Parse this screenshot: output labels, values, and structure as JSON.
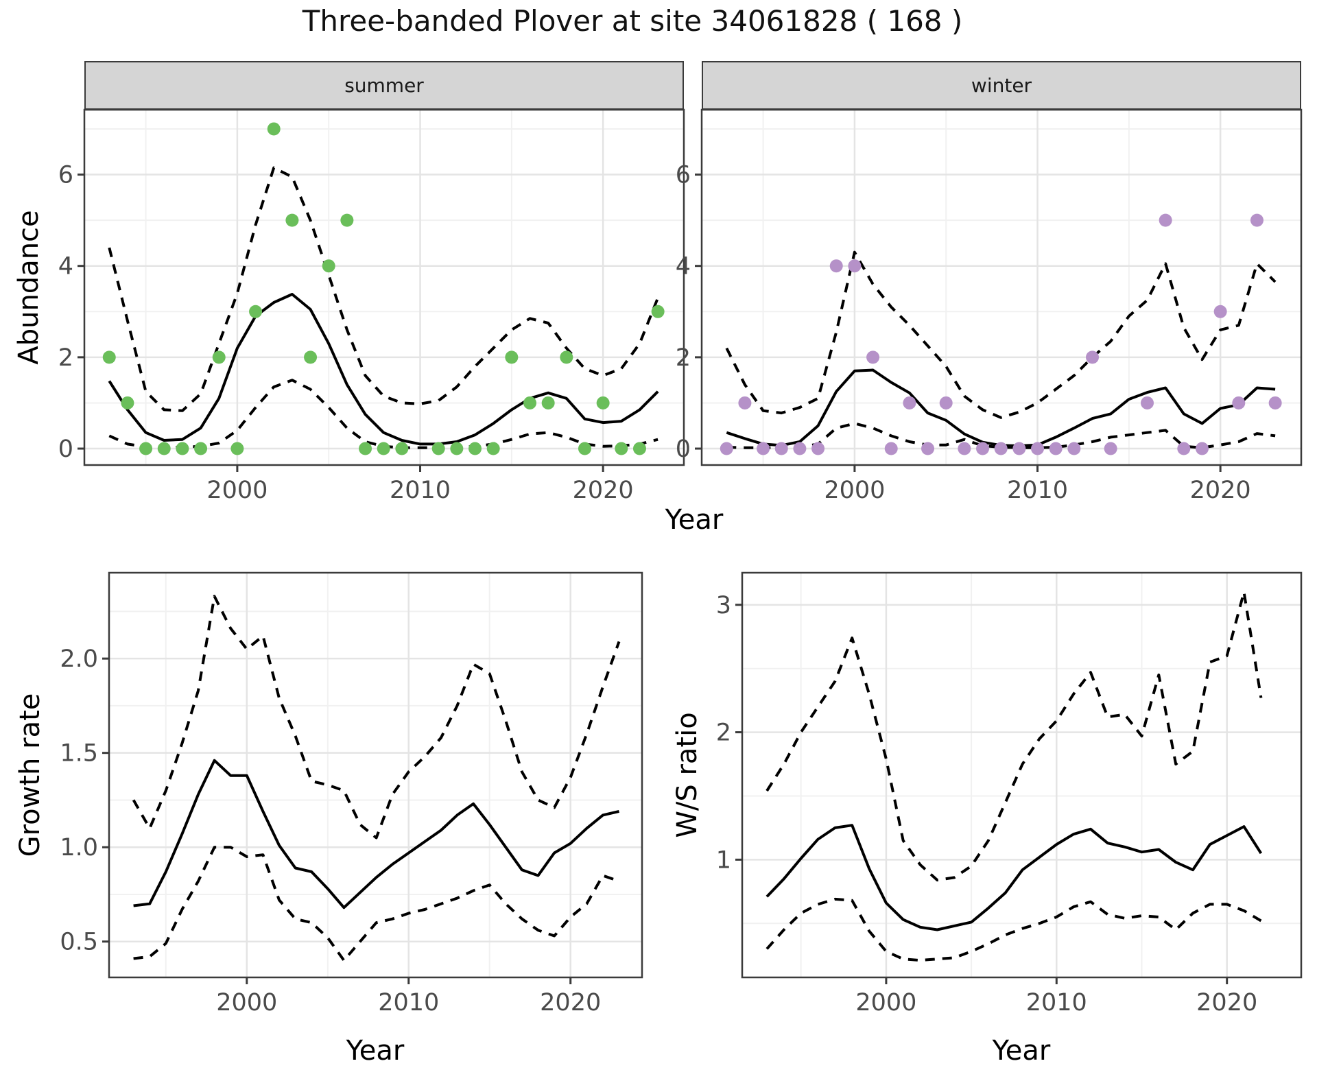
{
  "title": "Three-banded Plover at site 34061828 ( 168 )",
  "facets": [
    {
      "label": "summer"
    },
    {
      "label": "winter"
    }
  ],
  "axis_titles": {
    "abundance": "Abundance",
    "year": "Year",
    "growth": "Growth rate",
    "ws": "W/S ratio"
  },
  "colors": {
    "summer_point": "#6abe5a",
    "winter_point": "#b591c8",
    "line": "#000000",
    "grid_major": "#e4e4e4",
    "grid_minor": "#f1f1f1",
    "strip_bg": "#d5d5d5",
    "panel_border": "#3b3b3b",
    "tick_label": "#4a4a4a"
  },
  "chart_data": [
    {
      "panel": "summer",
      "type": "scatter+line",
      "facet_label": "summer",
      "xlim": [
        1991.64,
        2024.42
      ],
      "ylim": [
        -0.36,
        7.42
      ],
      "x_ticks": [
        2000,
        2010,
        2020
      ],
      "x_minor": [
        1995,
        2005,
        2015
      ],
      "y_ticks": [
        0,
        2,
        4,
        6
      ],
      "y_minor": [
        1,
        3,
        5,
        7
      ],
      "point_color": "summer_point",
      "points": [
        [
          1993,
          2
        ],
        [
          1994,
          1
        ],
        [
          1995,
          0
        ],
        [
          1996,
          0
        ],
        [
          1997,
          0
        ],
        [
          1998,
          0
        ],
        [
          1999,
          2
        ],
        [
          2000,
          0
        ],
        [
          2001,
          3
        ],
        [
          2002,
          7
        ],
        [
          2003,
          5
        ],
        [
          2004,
          2
        ],
        [
          2005,
          4
        ],
        [
          2006,
          5
        ],
        [
          2007,
          0
        ],
        [
          2008,
          0
        ],
        [
          2009,
          0
        ],
        [
          2011,
          0
        ],
        [
          2012,
          0
        ],
        [
          2013,
          0
        ],
        [
          2014,
          0
        ],
        [
          2015,
          2
        ],
        [
          2016,
          1
        ],
        [
          2017,
          1
        ],
        [
          2018,
          2
        ],
        [
          2019,
          0
        ],
        [
          2020,
          1
        ],
        [
          2021,
          0
        ],
        [
          2022,
          0
        ],
        [
          2023,
          3
        ]
      ],
      "years": [
        1993,
        1994,
        1995,
        1996,
        1997,
        1998,
        1999,
        2000,
        2001,
        2002,
        2003,
        2004,
        2005,
        2006,
        2007,
        2008,
        2009,
        2010,
        2011,
        2012,
        2013,
        2014,
        2015,
        2016,
        2017,
        2018,
        2019,
        2020,
        2021,
        2022,
        2023
      ],
      "fit": [
        1.48,
        0.85,
        0.35,
        0.18,
        0.2,
        0.45,
        1.1,
        2.2,
        2.9,
        3.2,
        3.38,
        3.05,
        2.3,
        1.4,
        0.75,
        0.35,
        0.18,
        0.1,
        0.1,
        0.15,
        0.3,
        0.55,
        0.85,
        1.1,
        1.22,
        1.1,
        0.65,
        0.57,
        0.6,
        0.85,
        1.25
      ],
      "upper": [
        4.4,
        2.8,
        1.25,
        0.85,
        0.83,
        1.2,
        2.3,
        3.4,
        4.9,
        6.15,
        5.95,
        5.0,
        3.8,
        2.6,
        1.6,
        1.15,
        1.0,
        0.98,
        1.05,
        1.35,
        1.8,
        2.2,
        2.6,
        2.85,
        2.75,
        2.2,
        1.75,
        1.6,
        1.75,
        2.3,
        3.3
      ],
      "lower": [
        0.28,
        0.1,
        0.04,
        0.03,
        0.03,
        0.05,
        0.12,
        0.4,
        0.9,
        1.35,
        1.5,
        1.3,
        0.9,
        0.45,
        0.15,
        0.05,
        0.02,
        0.02,
        0.02,
        0.03,
        0.05,
        0.1,
        0.2,
        0.32,
        0.35,
        0.25,
        0.1,
        0.05,
        0.06,
        0.1,
        0.2
      ]
    },
    {
      "panel": "winter",
      "type": "scatter+line",
      "facet_label": "winter",
      "xlim": [
        1991.64,
        2024.42
      ],
      "ylim": [
        -0.36,
        7.42
      ],
      "x_ticks": [
        2000,
        2010,
        2020
      ],
      "x_minor": [
        1995,
        2005,
        2015
      ],
      "y_ticks": [
        0,
        2,
        4,
        6
      ],
      "y_minor": [
        1,
        3,
        5,
        7
      ],
      "point_color": "winter_point",
      "points": [
        [
          1993,
          0
        ],
        [
          1994,
          1
        ],
        [
          1995,
          0
        ],
        [
          1996,
          0
        ],
        [
          1997,
          0
        ],
        [
          1998,
          0
        ],
        [
          1999,
          4
        ],
        [
          2000,
          4
        ],
        [
          2001,
          2
        ],
        [
          2002,
          0
        ],
        [
          2003,
          1
        ],
        [
          2004,
          0
        ],
        [
          2005,
          1
        ],
        [
          2006,
          0
        ],
        [
          2007,
          0
        ],
        [
          2008,
          0
        ],
        [
          2009,
          0
        ],
        [
          2010,
          0
        ],
        [
          2011,
          0
        ],
        [
          2012,
          0
        ],
        [
          2013,
          2
        ],
        [
          2014,
          0
        ],
        [
          2016,
          1
        ],
        [
          2017,
          5
        ],
        [
          2018,
          0
        ],
        [
          2019,
          0
        ],
        [
          2020,
          3
        ],
        [
          2021,
          1
        ],
        [
          2022,
          5
        ],
        [
          2023,
          1
        ]
      ],
      "years": [
        1993,
        1994,
        1995,
        1996,
        1997,
        1998,
        1999,
        2000,
        2001,
        2002,
        2003,
        2004,
        2005,
        2006,
        2007,
        2008,
        2009,
        2010,
        2011,
        2012,
        2013,
        2014,
        2015,
        2016,
        2017,
        2018,
        2019,
        2020,
        2021,
        2022,
        2023
      ],
      "fit": [
        0.35,
        0.22,
        0.1,
        0.07,
        0.15,
        0.5,
        1.25,
        1.7,
        1.72,
        1.45,
        1.22,
        0.78,
        0.62,
        0.32,
        0.14,
        0.07,
        0.06,
        0.08,
        0.25,
        0.45,
        0.66,
        0.76,
        1.08,
        1.23,
        1.33,
        0.76,
        0.55,
        0.88,
        0.96,
        1.33,
        1.3
      ],
      "upper": [
        2.2,
        1.4,
        0.83,
        0.78,
        0.9,
        1.1,
        2.55,
        4.3,
        3.6,
        3.1,
        2.7,
        2.25,
        1.8,
        1.15,
        0.85,
        0.68,
        0.8,
        1.0,
        1.3,
        1.6,
        2.0,
        2.35,
        2.9,
        3.25,
        4.05,
        2.65,
        1.95,
        2.6,
        2.7,
        4.05,
        3.65
      ],
      "lower": [
        0.03,
        0.02,
        0.02,
        0.02,
        0.03,
        0.1,
        0.45,
        0.55,
        0.45,
        0.28,
        0.15,
        0.08,
        0.08,
        0.2,
        0.06,
        0.03,
        0.02,
        0.02,
        0.03,
        0.08,
        0.15,
        0.25,
        0.3,
        0.35,
        0.4,
        0.05,
        0.02,
        0.08,
        0.15,
        0.33,
        0.28
      ]
    },
    {
      "panel": "growth",
      "type": "line",
      "ylabel": "Growth rate",
      "xlim": [
        1991.49,
        2024.42
      ],
      "ylim": [
        0.31,
        2.455
      ],
      "x_ticks": [
        2000,
        2010,
        2020
      ],
      "x_minor": [
        1995,
        2005,
        2015
      ],
      "y_ticks": [
        0.5,
        1.0,
        1.5,
        2.0
      ],
      "y_tick_labels": [
        "0.5",
        "1.0",
        "1.5",
        "2.0"
      ],
      "y_minor": [
        0.75,
        1.25,
        1.75,
        2.25
      ],
      "years": [
        1993,
        1994,
        1995,
        1996,
        1997,
        1998,
        1999,
        2000,
        2001,
        2002,
        2003,
        2004,
        2005,
        2006,
        2007,
        2008,
        2009,
        2010,
        2011,
        2012,
        2013,
        2014,
        2015,
        2016,
        2017,
        2018,
        2019,
        2020,
        2021,
        2022,
        2023
      ],
      "fit": [
        0.69,
        0.7,
        0.87,
        1.07,
        1.28,
        1.46,
        1.38,
        1.38,
        1.19,
        1.01,
        0.89,
        0.87,
        0.78,
        0.68,
        0.76,
        0.84,
        0.91,
        0.97,
        1.03,
        1.09,
        1.17,
        1.23,
        1.12,
        1.0,
        0.88,
        0.85,
        0.97,
        1.02,
        1.1,
        1.17,
        1.19
      ],
      "upper": [
        1.25,
        1.1,
        1.3,
        1.55,
        1.83,
        2.33,
        2.16,
        2.05,
        2.12,
        1.79,
        1.59,
        1.35,
        1.33,
        1.3,
        1.12,
        1.05,
        1.28,
        1.4,
        1.48,
        1.58,
        1.75,
        1.97,
        1.92,
        1.67,
        1.4,
        1.25,
        1.21,
        1.37,
        1.6,
        1.85,
        2.09
      ],
      "lower": [
        0.41,
        0.42,
        0.49,
        0.67,
        0.82,
        1.0,
        1.0,
        0.95,
        0.96,
        0.72,
        0.62,
        0.6,
        0.52,
        0.4,
        0.5,
        0.6,
        0.62,
        0.65,
        0.67,
        0.7,
        0.73,
        0.77,
        0.8,
        0.7,
        0.62,
        0.56,
        0.53,
        0.63,
        0.7,
        0.85,
        0.82
      ]
    },
    {
      "panel": "ws",
      "type": "line",
      "ylabel": "W/S ratio",
      "xlim": [
        1991.55,
        2024.36
      ],
      "ylim": [
        0.076,
        3.252
      ],
      "x_ticks": [
        2000,
        2010,
        2020
      ],
      "x_minor": [
        1995,
        2005,
        2015
      ],
      "y_ticks": [
        1,
        2,
        3
      ],
      "y_tick_labels": [
        "1",
        "2",
        "3"
      ],
      "y_minor": [
        0.5,
        1.5,
        2.5
      ],
      "years": [
        1993,
        1994,
        1995,
        1996,
        1997,
        1998,
        1999,
        2000,
        2001,
        2002,
        2003,
        2004,
        2005,
        2006,
        2007,
        2008,
        2009,
        2010,
        2011,
        2012,
        2013,
        2014,
        2015,
        2016,
        2017,
        2018,
        2019,
        2020,
        2021,
        2022
      ],
      "fit": [
        0.71,
        0.85,
        1.01,
        1.16,
        1.25,
        1.27,
        0.93,
        0.66,
        0.53,
        0.47,
        0.45,
        0.48,
        0.51,
        0.62,
        0.74,
        0.92,
        1.02,
        1.12,
        1.2,
        1.24,
        1.13,
        1.1,
        1.06,
        1.08,
        0.98,
        0.92,
        1.12,
        1.19,
        1.26,
        1.05
      ],
      "upper": [
        1.54,
        1.75,
        2.0,
        2.2,
        2.4,
        2.74,
        2.3,
        1.79,
        1.15,
        0.96,
        0.84,
        0.86,
        0.95,
        1.15,
        1.45,
        1.75,
        1.95,
        2.09,
        2.3,
        2.47,
        2.12,
        2.14,
        1.97,
        2.45,
        1.75,
        1.85,
        2.55,
        2.6,
        3.1,
        2.27
      ],
      "lower": [
        0.3,
        0.45,
        0.58,
        0.65,
        0.69,
        0.68,
        0.44,
        0.28,
        0.22,
        0.21,
        0.22,
        0.23,
        0.28,
        0.34,
        0.41,
        0.46,
        0.5,
        0.55,
        0.63,
        0.67,
        0.57,
        0.54,
        0.56,
        0.55,
        0.45,
        0.58,
        0.65,
        0.65,
        0.6,
        0.52
      ]
    }
  ]
}
